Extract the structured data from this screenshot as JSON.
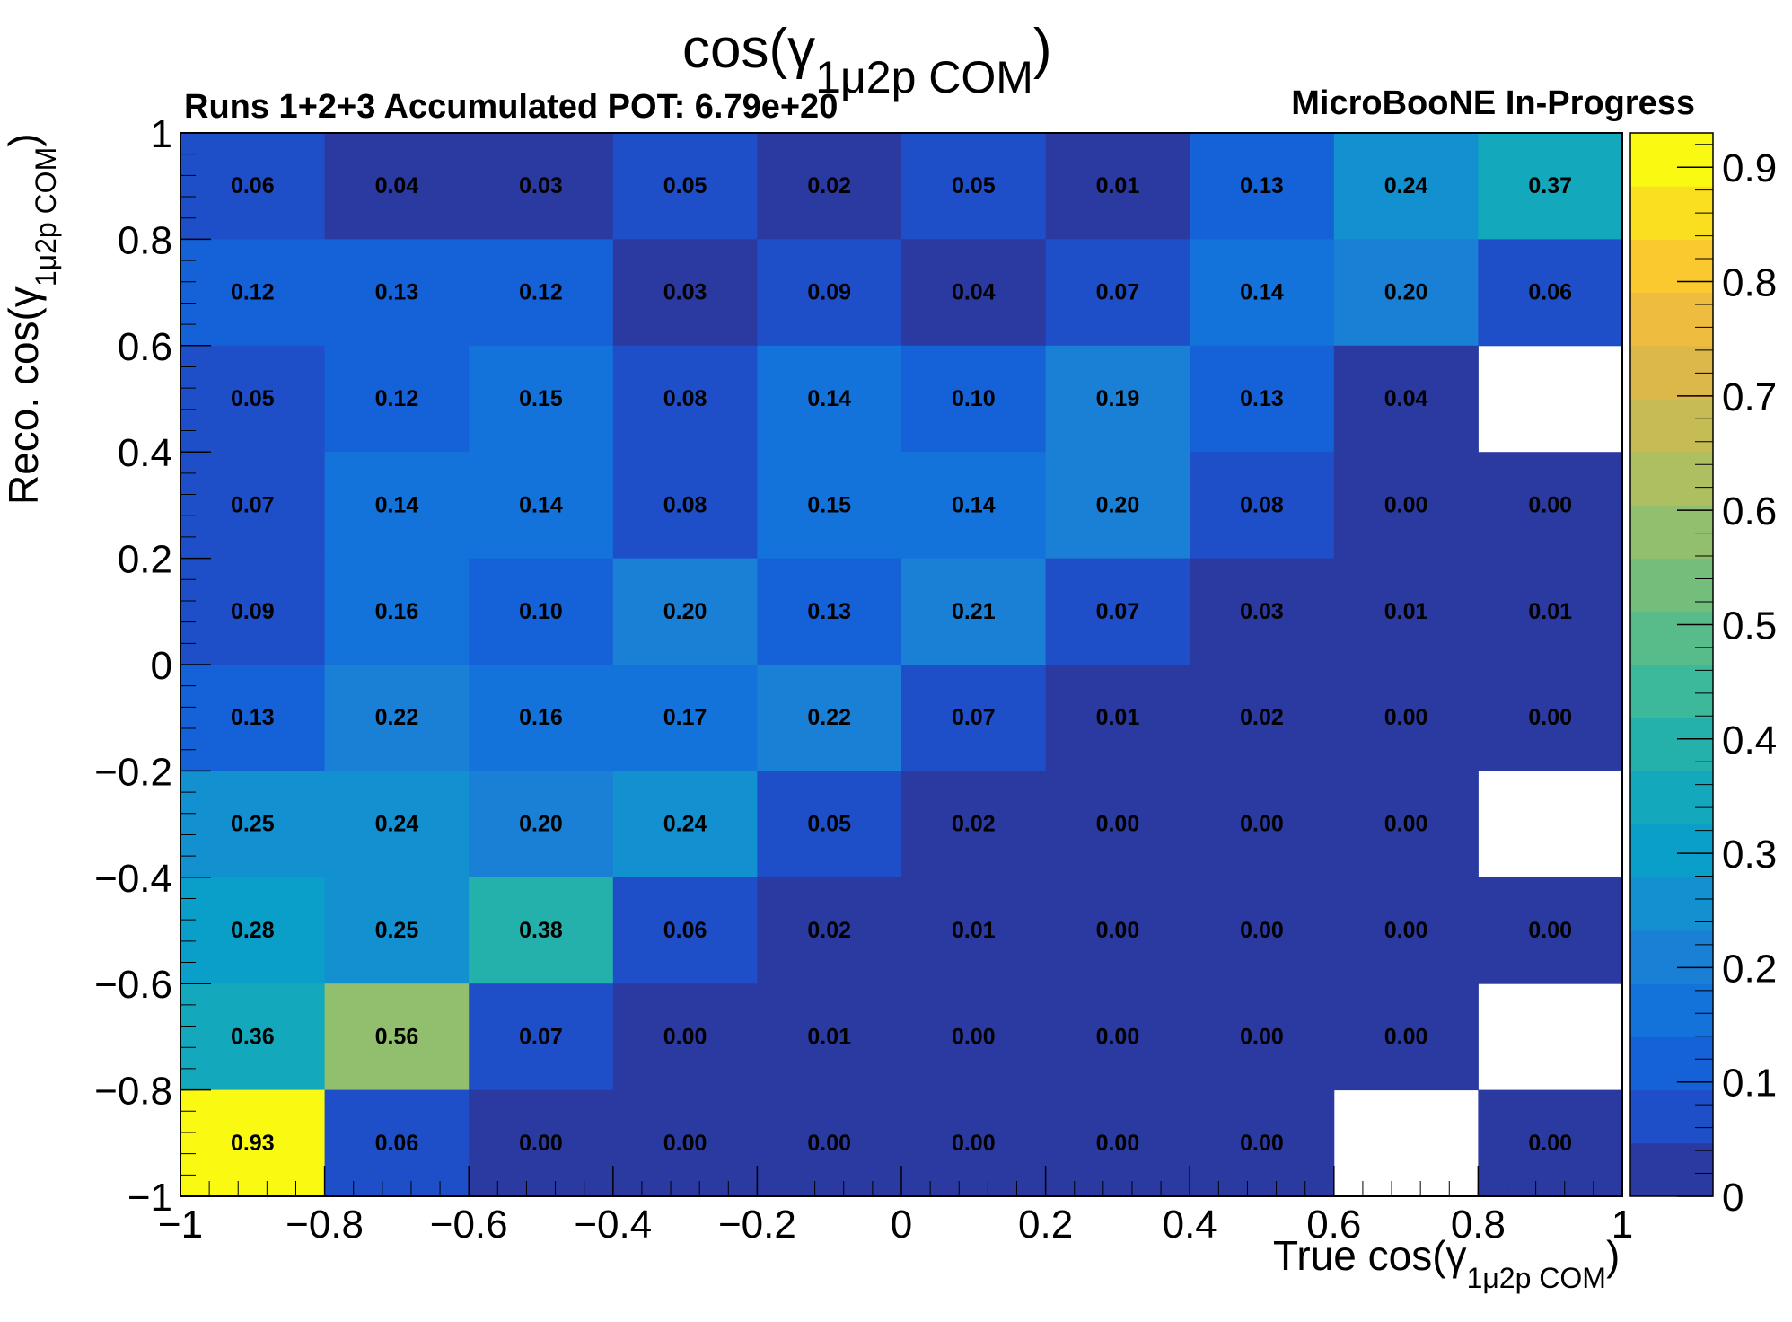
{
  "chart_data": {
    "type": "heatmap",
    "title": {
      "main": "cos(γ",
      "sub": "1μ2p COM",
      "close": ")"
    },
    "header_left": "Runs 1+2+3 Accumulated POT: 6.79e+20",
    "header_right": "MicroBooNE In-Progress",
    "xlabel": {
      "main": "True cos(γ",
      "sub": "1μ2p COM",
      "close": ")"
    },
    "ylabel": {
      "main": "Reco. cos(γ",
      "sub": "1μ2p COM",
      "close": ")"
    },
    "xlim": [
      -1,
      1
    ],
    "ylim": [
      -1,
      1
    ],
    "x_edges": [
      -1,
      -0.8,
      -0.6,
      -0.4,
      -0.2,
      0,
      0.2,
      0.4,
      0.6,
      0.8,
      1
    ],
    "y_edges": [
      -1,
      -0.8,
      -0.6,
      -0.4,
      -0.2,
      0,
      0.2,
      0.4,
      0.6,
      0.8,
      1
    ],
    "x_ticks": [
      -1,
      -0.8,
      -0.6,
      -0.4,
      -0.2,
      0,
      0.2,
      0.4,
      0.6,
      0.8,
      1
    ],
    "x_tick_labels": [
      "−1",
      "−0.8",
      "−0.6",
      "−0.4",
      "−0.2",
      "0",
      "0.2",
      "0.4",
      "0.6",
      "0.8",
      "1"
    ],
    "y_ticks": [
      -1,
      -0.8,
      -0.6,
      -0.4,
      -0.2,
      0,
      0.2,
      0.4,
      0.6,
      0.8,
      1
    ],
    "y_tick_labels": [
      "−1",
      "−0.8",
      "−0.6",
      "−0.4",
      "−0.2",
      "0",
      "0.2",
      "0.4",
      "0.6",
      "0.8",
      "1"
    ],
    "z_range": [
      0,
      0.93
    ],
    "z_ticks": [
      0,
      0.1,
      0.2,
      0.3,
      0.4,
      0.5,
      0.6,
      0.7,
      0.8,
      0.9
    ],
    "z_tick_labels": [
      "0",
      "0.1",
      "0.2",
      "0.3",
      "0.4",
      "0.5",
      "0.6",
      "0.7",
      "0.8",
      "0.9"
    ],
    "colormap": "parula",
    "values_note_rows_from_top": "rows listed from reco bin 0.8–1 down to −1–−0.8; null = empty white bin",
    "values": [
      [
        0.06,
        0.04,
        0.03,
        0.05,
        0.02,
        0.05,
        0.01,
        0.13,
        0.24,
        0.37
      ],
      [
        0.12,
        0.13,
        0.12,
        0.03,
        0.09,
        0.04,
        0.07,
        0.14,
        0.2,
        0.06
      ],
      [
        0.05,
        0.12,
        0.15,
        0.08,
        0.14,
        0.1,
        0.19,
        0.13,
        0.04,
        null
      ],
      [
        0.07,
        0.14,
        0.14,
        0.08,
        0.15,
        0.14,
        0.2,
        0.08,
        0.0,
        0.0
      ],
      [
        0.09,
        0.16,
        0.1,
        0.2,
        0.13,
        0.21,
        0.07,
        0.03,
        0.01,
        0.01
      ],
      [
        0.13,
        0.22,
        0.16,
        0.17,
        0.22,
        0.07,
        0.01,
        0.02,
        0.0,
        0.0
      ],
      [
        0.25,
        0.24,
        0.2,
        0.24,
        0.05,
        0.02,
        0.0,
        0.0,
        0.0,
        null
      ],
      [
        0.28,
        0.25,
        0.38,
        0.06,
        0.02,
        0.01,
        0.0,
        0.0,
        0.0,
        0.0
      ],
      [
        0.36,
        0.56,
        0.07,
        0.0,
        0.01,
        0.0,
        0.0,
        0.0,
        0.0,
        null
      ],
      [
        0.93,
        0.06,
        0.0,
        0.0,
        0.0,
        0.0,
        0.0,
        0.0,
        null,
        0.0
      ]
    ],
    "grid": false
  }
}
